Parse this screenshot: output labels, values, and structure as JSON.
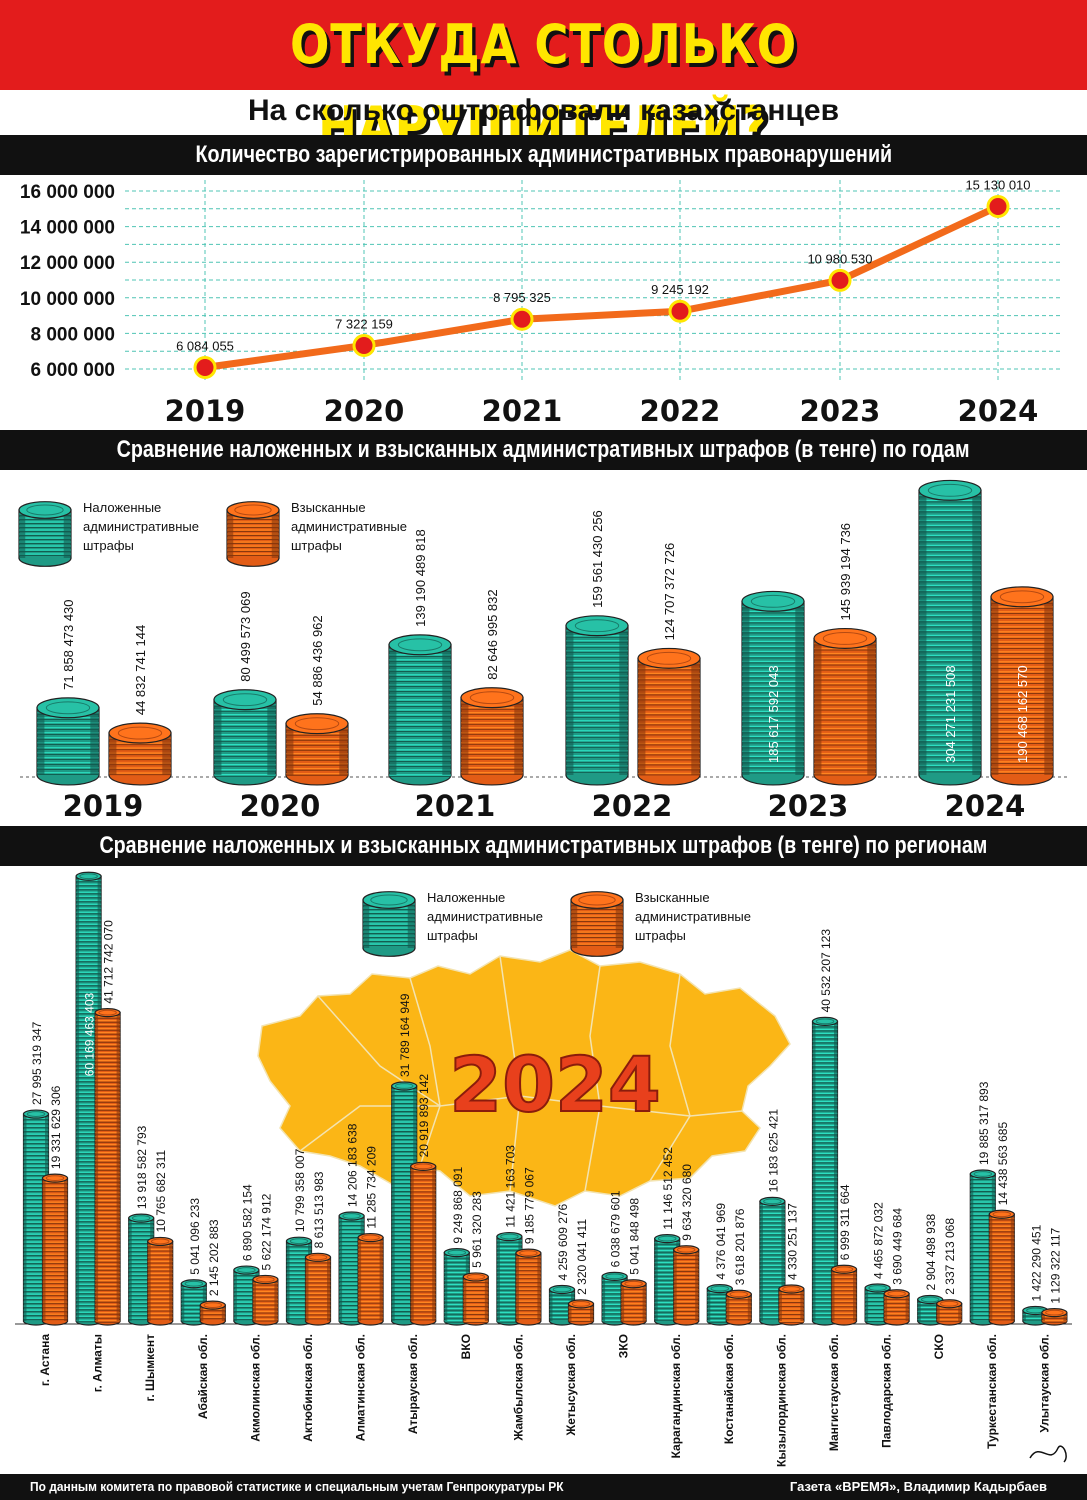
{
  "header": {
    "title": "ОТКУДА СТОЛЬКО НАРУШИТЕЛЕЙ?",
    "subtitle": "На сколько оштрафовали казахстанцев"
  },
  "sections": {
    "s1": "Количество зарегистрированных административных правонарушений",
    "s2": "Сравнение наложенных и взысканных административных штрафов (в тенге) по годам",
    "s3": "Сравнение наложенных и взысканных административных штрафов (в тенге) по регионам"
  },
  "legend": {
    "imposed": [
      "Наложенные",
      "административные",
      "штрафы"
    ],
    "collected": [
      "Взысканные",
      "административные",
      "штрафы"
    ]
  },
  "map_year": "2024",
  "footer": {
    "source": "По данным комитета по правовой статистике и специальным учетам Генпрокуратуры РК",
    "credit": "Газета «ВРЕМЯ», Владимир Кадырбаев"
  },
  "colors": {
    "line": "#f26a1b",
    "point": "#e31c1c",
    "point_outline": "#ffe600",
    "imposed": "#1f9a85",
    "collected": "#e25c16",
    "grid": "#4fc4b4",
    "map": "#fbb616"
  },
  "chart_data": [
    {
      "type": "line",
      "categories": [
        "2019",
        "2020",
        "2021",
        "2022",
        "2023",
        "2024"
      ],
      "values": [
        6084055,
        7322159,
        8795325,
        9245192,
        10980530,
        15130010
      ],
      "labels": [
        "6 084 055",
        "7 322 159",
        "8 795 325",
        "9 245 192",
        "10 980 530",
        "15 130 010"
      ],
      "yticks": [
        "6 000 000",
        "8 000 000",
        "10 000 000",
        "12 000 000",
        "14 000 000",
        "16 000 000"
      ],
      "ytick_values": [
        6000000,
        8000000,
        10000000,
        12000000,
        14000000,
        16000000
      ],
      "grid": true
    },
    {
      "type": "bar",
      "categories": [
        "2019",
        "2020",
        "2021",
        "2022",
        "2023",
        "2024"
      ],
      "series": [
        {
          "name": "Наложенные административные штрафы",
          "values": [
            71858473430,
            80499573069,
            139190489818,
            159561430256,
            185617592043,
            304271231508
          ],
          "labels": [
            "71 858 473 430",
            "80 499 573 069",
            "139 190 489 818",
            "159 561 430 256",
            "185 617 592 043",
            "304 271 231 508"
          ]
        },
        {
          "name": "Взысканные административные штрафы",
          "values": [
            44832741144,
            54886436962,
            82646995832,
            124707372726,
            145939194736,
            190468162570
          ],
          "labels": [
            "44 832 741 144",
            "54 886 436 962",
            "82 646 995 832",
            "124 707 372 726",
            "145 939 194 736",
            "190 468 162 570"
          ]
        }
      ]
    },
    {
      "type": "bar",
      "categories": [
        "г. Астана",
        "г. Алматы",
        "г. Шымкент",
        "Абайская обл.",
        "Акмолинская обл.",
        "Актюбинская обл.",
        "Алматинская обл.",
        "Атырауская обл.",
        "ВКО",
        "Жамбылская обл.",
        "Жетысуская обл.",
        "ЗКО",
        "Карагандинская обл.",
        "Костанайская обл.",
        "Кызылординская обл.",
        "Мангистауская обл.",
        "Павлодарская обл.",
        "СКО",
        "Туркестанская обл.",
        "Улытауская обл."
      ],
      "series": [
        {
          "name": "Наложенные административные штрафы",
          "values": [
            27995319347,
            60169463403,
            13918582793,
            5041096233,
            6890582154,
            10799358007,
            14206183638,
            31789164949,
            9249868091,
            11421163703,
            4259609276,
            6038679601,
            11146512452,
            4376041969,
            16183625421,
            40532207123,
            4465872032,
            2904498938,
            19885317893,
            1422290451
          ],
          "labels": [
            "27 995 319 347",
            "60 169 463 403",
            "13 918 582 793",
            "5 041 096 233",
            "6 890 582 154",
            "10 799 358 007",
            "14 206 183 638",
            "31 789 164 949",
            "9 249 868 091",
            "11 421 163 703",
            "4 259 609 276",
            "6 038 679 601",
            "11 146 512 452",
            "4 376 041 969",
            "16 183 625 421",
            "40 532 207 123",
            "4 465 872 032",
            "2 904 498 938",
            "19 885 317 893",
            "1 422 290 451"
          ]
        },
        {
          "name": "Взысканные административные штрафы",
          "values": [
            19331629306,
            41712742070,
            10765682311,
            2145202883,
            5622174912,
            8613513983,
            11285734209,
            20919893142,
            5961320283,
            9185779067,
            2320041411,
            5041848498,
            9634320680,
            3618201876,
            4330251137,
            6999311664,
            3690449684,
            2337213068,
            14438563685,
            1129322117
          ],
          "labels": [
            "19 331 629 306",
            "41 712 742 070",
            "10 765 682 311",
            "2 145 202 883",
            "5 622 174 912",
            "8 613 513 983",
            "11 285 734 209",
            "20 919 893 142",
            "5 961 320 283",
            "9 185 779 067",
            "2 320 041 411",
            "5 041 848 498",
            "9 634 320 680",
            "3 618 201 876",
            "4 330 251 137",
            "6 999 311 664",
            "3 690 449 684",
            "2 337 213 068",
            "14 438 563 685",
            "1 129 322 117"
          ]
        }
      ]
    }
  ]
}
